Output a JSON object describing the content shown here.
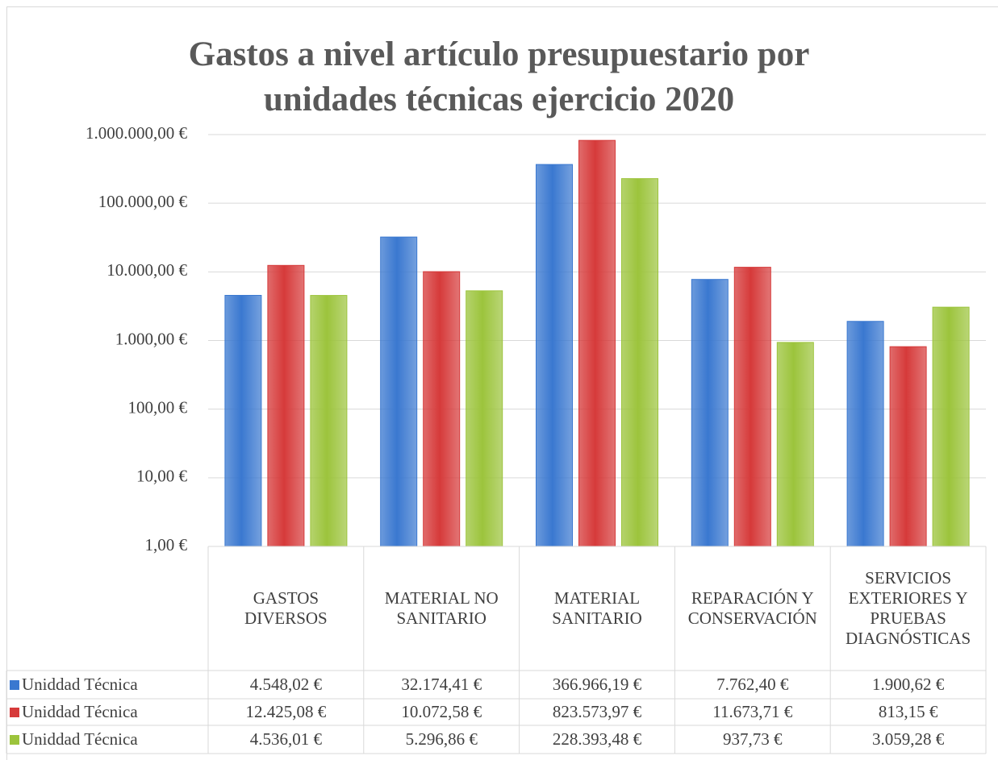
{
  "chart_data": {
    "type": "bar",
    "title": "Gastos a nivel artículo presupuestario por unidades técnicas ejercicio 2020",
    "categories": [
      "GASTOS DIVERSOS",
      "MATERIAL NO SANITARIO",
      "MATERIAL SANITARIO",
      "REPARACIÓN Y CONSERVACIÓN",
      "SERVICIOS EXTERIORES Y PRUEBAS DIAGNÓSTICAS"
    ],
    "series": [
      {
        "name": "Uniddad Técnica",
        "color": "#3a78d0",
        "values": [
          4548.02,
          32174.41,
          366966.19,
          7762.4,
          1900.62
        ],
        "value_labels": [
          "4.548,02 €",
          "32.174,41 €",
          "366.966,19 €",
          "7.762,40 €",
          "1.900,62 €"
        ]
      },
      {
        "name": "Uniddad Técnica",
        "color": "#d63a3a",
        "values": [
          12425.08,
          10072.58,
          823573.97,
          11673.71,
          813.15
        ],
        "value_labels": [
          "12.425,08 €",
          "10.072,58 €",
          "823.573,97 €",
          "11.673,71 €",
          "813,15 €"
        ]
      },
      {
        "name": "Uniddad Técnica",
        "color": "#9cc43c",
        "values": [
          4536.01,
          5296.86,
          228393.48,
          937.73,
          3059.28
        ],
        "value_labels": [
          "4.536,01 €",
          "5.296,86 €",
          "228.393,48 €",
          "937,73 €",
          "3.059,28 €"
        ]
      }
    ],
    "log_scale": true,
    "ylim": [
      1,
      1000000
    ],
    "yticks": [
      {
        "value": 1,
        "label": "1,00 €"
      },
      {
        "value": 10,
        "label": "10,00 €"
      },
      {
        "value": 100,
        "label": "100,00 €"
      },
      {
        "value": 1000,
        "label": "1.000,00 €"
      },
      {
        "value": 10000,
        "label": "10.000,00 €"
      },
      {
        "value": 100000,
        "label": "100.000,00 €"
      },
      {
        "value": 1000000,
        "label": "1.000.000,00 €"
      }
    ],
    "grid": true
  }
}
